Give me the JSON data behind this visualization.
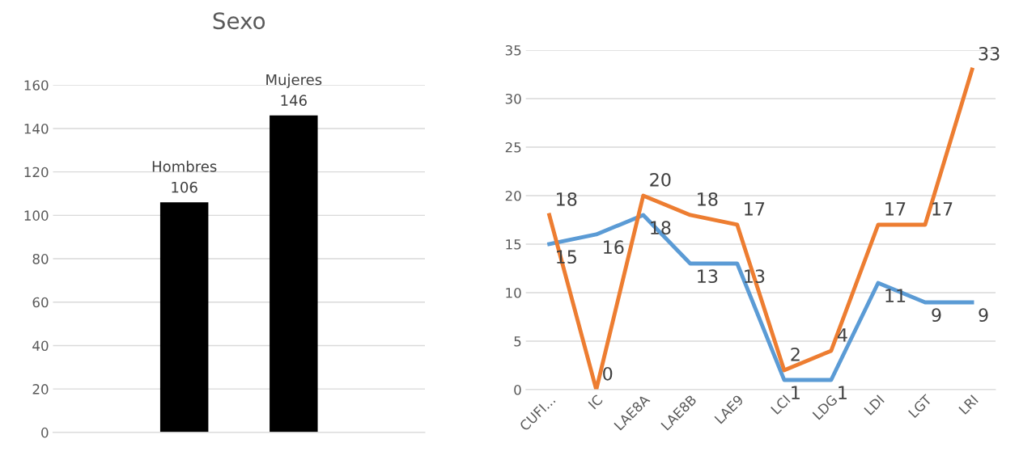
{
  "chart_data": [
    {
      "type": "bar",
      "title": "Sexo",
      "categories": [
        "Hombres",
        "Mujeres"
      ],
      "values": [
        106,
        146
      ],
      "color": "#000000",
      "ylim": [
        0,
        160
      ],
      "yticks": [
        0,
        20,
        40,
        60,
        80,
        100,
        120,
        140,
        160
      ],
      "grid": "y",
      "data_labels": true,
      "tick_labels": "y"
    },
    {
      "type": "line",
      "categories": [
        "CUFI...",
        "IC",
        "LAE8A",
        "LAE8B",
        "LAE9",
        "LCI",
        "LDG",
        "LDI",
        "LGT",
        "LRI"
      ],
      "series": [
        {
          "color": "#5b9bd5",
          "values": [
            15,
            16,
            18,
            13,
            13,
            1,
            1,
            11,
            9,
            9
          ]
        },
        {
          "color": "#ed7d31",
          "values": [
            18,
            0,
            20,
            18,
            17,
            2,
            4,
            17,
            17,
            33
          ]
        }
      ],
      "ylim": [
        0,
        35
      ],
      "yticks": [
        0,
        5,
        10,
        15,
        20,
        25,
        30,
        35
      ],
      "grid": "y",
      "data_labels": true
    }
  ]
}
